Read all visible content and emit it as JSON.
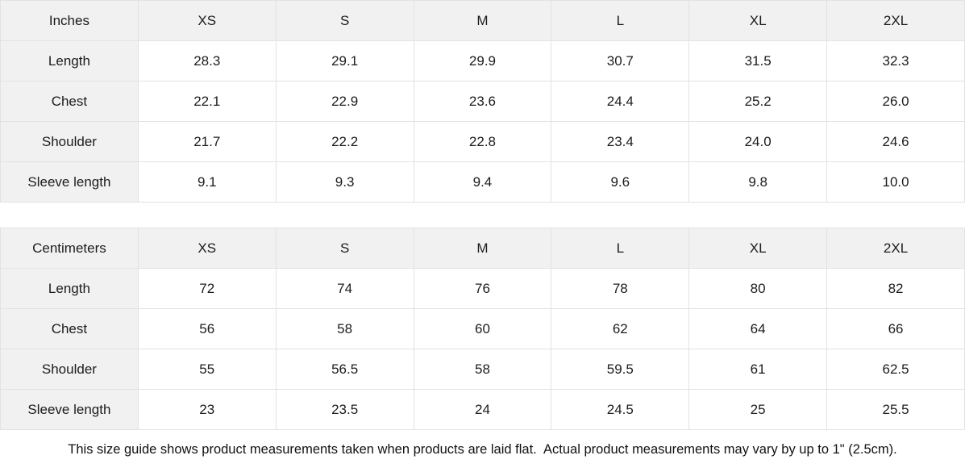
{
  "theme": {
    "header_bg": "#f1f1f1",
    "cell_bg": "#ffffff",
    "border_color": "#e2e2e2",
    "text_color": "#1c1c1c"
  },
  "inches_table": {
    "unit_label": "Inches",
    "sizes": [
      "XS",
      "S",
      "M",
      "L",
      "XL",
      "2XL"
    ],
    "rows": [
      {
        "label": "Length",
        "values": [
          "28.3",
          "29.1",
          "29.9",
          "30.7",
          "31.5",
          "32.3"
        ]
      },
      {
        "label": "Chest",
        "values": [
          "22.1",
          "22.9",
          "23.6",
          "24.4",
          "25.2",
          "26.0"
        ]
      },
      {
        "label": "Shoulder",
        "values": [
          "21.7",
          "22.2",
          "22.8",
          "23.4",
          "24.0",
          "24.6"
        ]
      },
      {
        "label": "Sleeve length",
        "values": [
          "9.1",
          "9.3",
          "9.4",
          "9.6",
          "9.8",
          "10.0"
        ]
      }
    ]
  },
  "centimeters_table": {
    "unit_label": "Centimeters",
    "sizes": [
      "XS",
      "S",
      "M",
      "L",
      "XL",
      "2XL"
    ],
    "rows": [
      {
        "label": "Length",
        "values": [
          "72",
          "74",
          "76",
          "78",
          "80",
          "82"
        ]
      },
      {
        "label": "Chest",
        "values": [
          "56",
          "58",
          "60",
          "62",
          "64",
          "66"
        ]
      },
      {
        "label": "Shoulder",
        "values": [
          "55",
          "56.5",
          "58",
          "59.5",
          "61",
          "62.5"
        ]
      },
      {
        "label": "Sleeve length",
        "values": [
          "23",
          "23.5",
          "24",
          "24.5",
          "25",
          "25.5"
        ]
      }
    ]
  },
  "footer": {
    "note": "This size guide shows product measurements taken when products are laid flat.  Actual product measurements may vary by up to 1\" (2.5cm)."
  }
}
